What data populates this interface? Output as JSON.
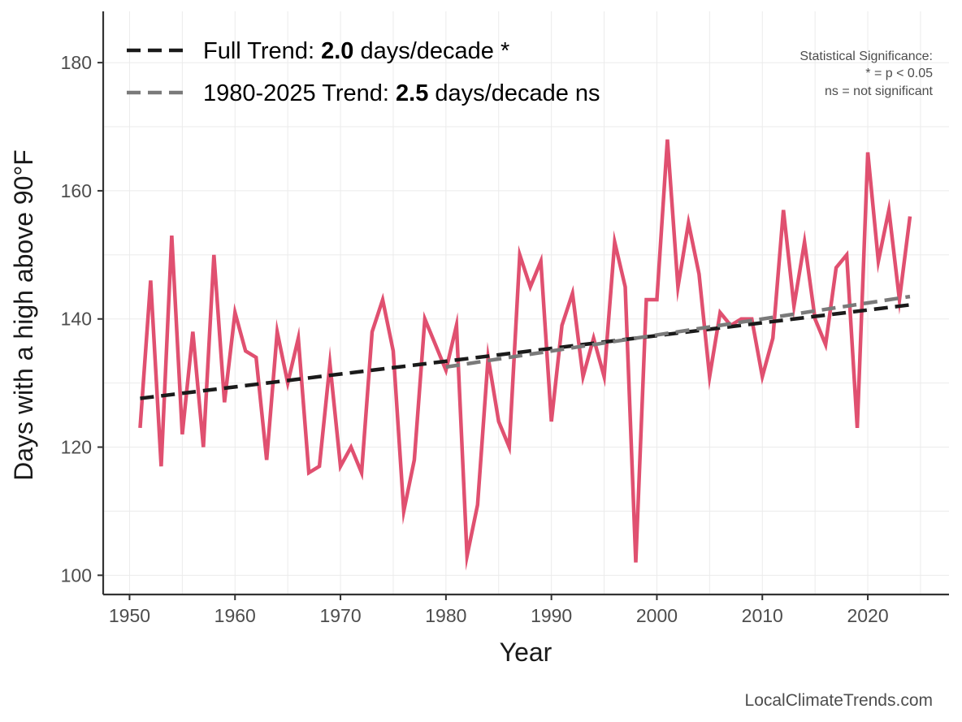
{
  "chart_data": {
    "type": "line",
    "title": "",
    "xlabel": "Year",
    "ylabel": "Days with a high above 90°F",
    "xlim": [
      1947.5,
      2027.7
    ],
    "ylim": [
      97,
      188
    ],
    "xticks": [
      1950,
      1960,
      1970,
      1980,
      1990,
      2000,
      2010,
      2020
    ],
    "yticks": [
      100,
      120,
      140,
      160,
      180
    ],
    "grid": true,
    "series": [
      {
        "name": "Days with a high above 90°F",
        "color": "#e05070",
        "style": "solid",
        "x": [
          1951,
          1952,
          1953,
          1954,
          1955,
          1956,
          1957,
          1958,
          1959,
          1960,
          1961,
          1962,
          1963,
          1964,
          1965,
          1966,
          1967,
          1968,
          1969,
          1970,
          1971,
          1972,
          1973,
          1974,
          1975,
          1976,
          1977,
          1978,
          1979,
          1980,
          1981,
          1982,
          1983,
          1984,
          1985,
          1986,
          1987,
          1988,
          1989,
          1990,
          1991,
          1992,
          1993,
          1994,
          1995,
          1996,
          1997,
          1998,
          1999,
          2000,
          2001,
          2002,
          2003,
          2004,
          2005,
          2006,
          2007,
          2008,
          2009,
          2010,
          2011,
          2012,
          2013,
          2014,
          2015,
          2016,
          2017,
          2018,
          2019,
          2020,
          2021,
          2022,
          2023,
          2024
        ],
        "values": [
          123,
          146,
          117,
          153,
          122,
          138,
          120,
          150,
          127,
          141,
          135,
          134,
          118,
          138,
          130,
          137,
          116,
          117,
          133,
          117,
          120,
          116,
          138,
          143,
          135,
          110,
          118,
          140,
          136,
          132,
          139,
          103,
          111,
          134,
          124,
          120,
          150,
          145,
          149,
          124,
          139,
          144,
          131,
          137,
          131,
          152,
          145,
          102,
          143,
          143,
          168,
          145,
          155,
          147,
          131,
          141,
          139,
          140,
          140,
          131,
          137,
          157,
          142,
          152,
          140,
          136,
          148,
          150,
          123,
          166,
          149,
          157,
          143,
          156
        ]
      },
      {
        "name": "Full Trend",
        "color": "#1a1a1a",
        "style": "dashed",
        "x": [
          1951,
          2024
        ],
        "values": [
          127.6,
          142.2
        ]
      },
      {
        "name": "1980-2025 Trend",
        "color": "#7a7a7a",
        "style": "dashed",
        "x": [
          1980,
          2024
        ],
        "values": [
          132.5,
          143.5
        ]
      }
    ],
    "legend": {
      "position": "top-left",
      "entries": [
        {
          "prefix": "Full Trend: ",
          "value": "2.0",
          "suffix": " days/decade *",
          "color": "#1a1a1a"
        },
        {
          "prefix": "1980-2025 Trend: ",
          "value": "2.5",
          "suffix": " days/decade ns",
          "color": "#7a7a7a"
        }
      ]
    },
    "annotations": {
      "significance_title": "Statistical Significance:",
      "significance_line1": "* = p < 0.05",
      "significance_line2": "ns = not significant"
    }
  },
  "credit": "LocalClimateTrends.com"
}
